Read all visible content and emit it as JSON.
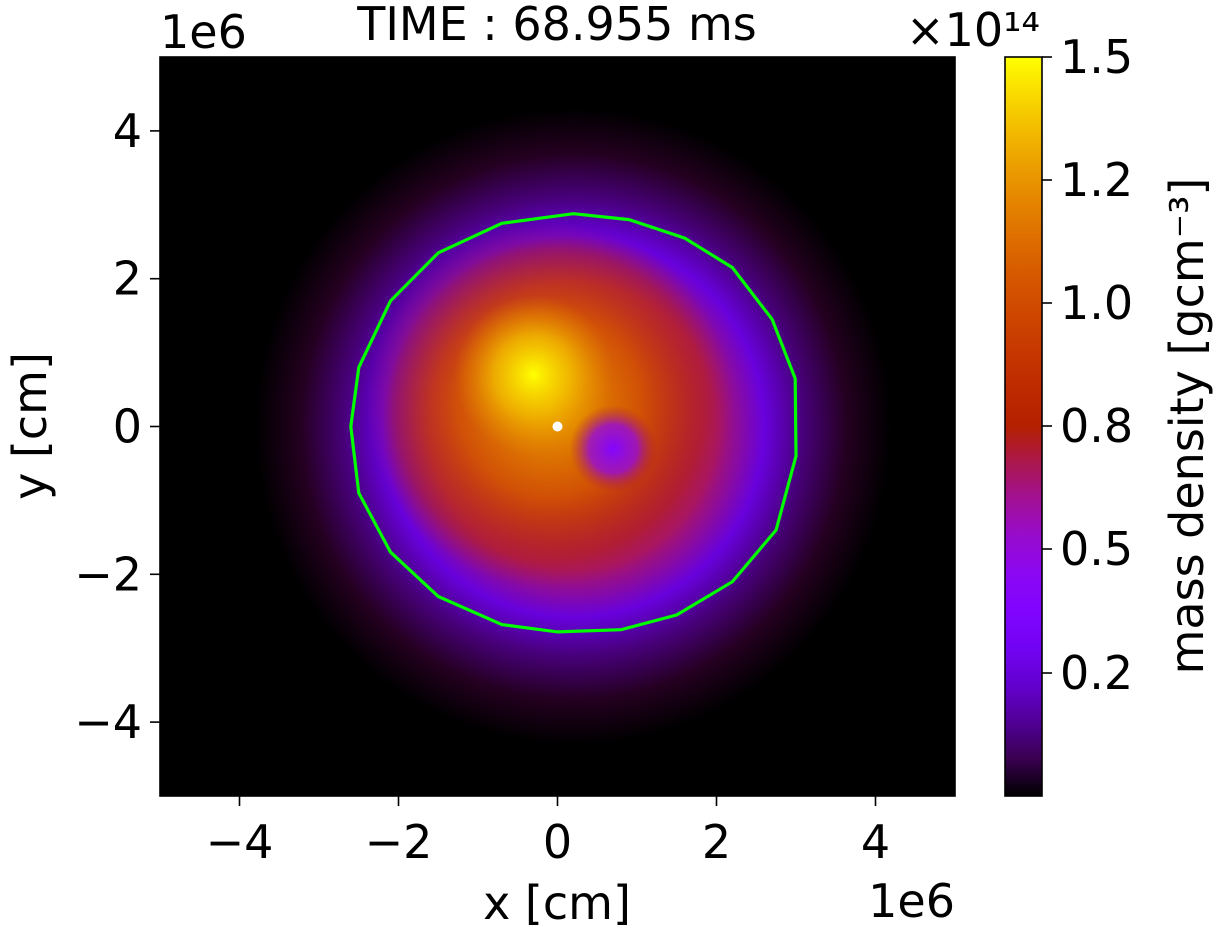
{
  "chart_data": {
    "type": "heatmap",
    "title": "TIME : 68.955 ms",
    "xlabel": "x [cm]",
    "ylabel": "y [cm]",
    "x_offset_text": "1e6",
    "y_offset_text": "1e6",
    "xlim": [
      -5000000,
      5000000
    ],
    "ylim": [
      -5000000,
      5000000
    ],
    "x_ticks": [
      -4000000,
      -2000000,
      0,
      2000000,
      4000000
    ],
    "y_ticks": [
      -4000000,
      -2000000,
      0,
      2000000,
      4000000
    ],
    "x_tick_labels": [
      "−4",
      "−2",
      "0",
      "2",
      "4"
    ],
    "y_tick_labels": [
      "−4",
      "−2",
      "0",
      "2",
      "4"
    ],
    "grid": false,
    "colormap": "gnuplot",
    "colorbar": {
      "label": "mass density [gcm⁻³]",
      "offset_text": "×10¹⁴",
      "min": 0,
      "max": 1.5,
      "ticks": [
        0.2,
        0.5,
        0.8,
        1.0,
        1.2,
        1.5
      ],
      "tick_labels": [
        "0.2",
        "0.5",
        "0.8",
        "1.0",
        "1.2",
        "1.5"
      ]
    },
    "features": {
      "density_peak": {
        "x": -300000,
        "y": 700000,
        "value": 1.5
      },
      "low_density_pocket": {
        "x": 700000,
        "y": -300000,
        "value": 0.4
      },
      "outer_ring_value": 0.25,
      "center_marker": {
        "x": 0,
        "y": 0,
        "color": "#ffffff"
      },
      "contour_color": "#00ff00",
      "contour": [
        [
          200000,
          2880000
        ],
        [
          900000,
          2800000
        ],
        [
          1600000,
          2550000
        ],
        [
          2200000,
          2150000
        ],
        [
          2700000,
          1450000
        ],
        [
          2990000,
          650000
        ],
        [
          3000000,
          -400000
        ],
        [
          2750000,
          -1400000
        ],
        [
          2200000,
          -2100000
        ],
        [
          1500000,
          -2550000
        ],
        [
          800000,
          -2750000
        ],
        [
          0,
          -2780000
        ],
        [
          -700000,
          -2680000
        ],
        [
          -1500000,
          -2300000
        ],
        [
          -2100000,
          -1700000
        ],
        [
          -2500000,
          -900000
        ],
        [
          -2600000,
          0
        ],
        [
          -2500000,
          800000
        ],
        [
          -2100000,
          1700000
        ],
        [
          -1500000,
          2350000
        ],
        [
          -700000,
          2750000
        ]
      ]
    }
  }
}
